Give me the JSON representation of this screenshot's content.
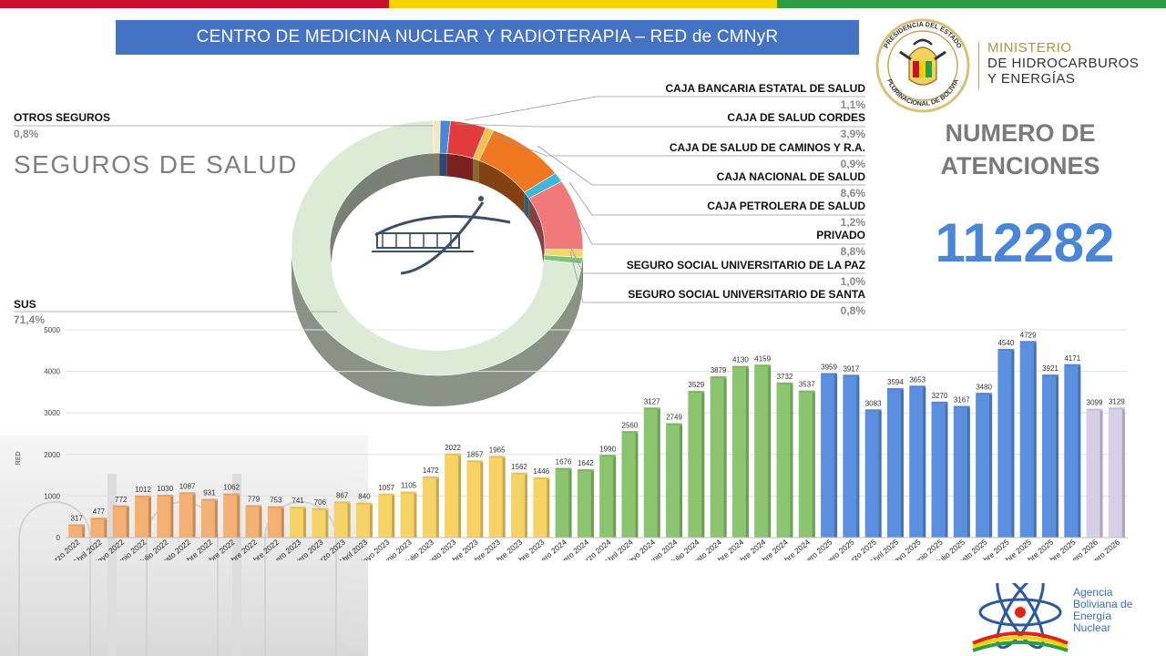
{
  "banner": {
    "title": "CENTRO DE MEDICINA NUCLEAR Y RADIOTERAPIA – RED de CMNyR",
    "bg": "#4472c4"
  },
  "flag_colors": [
    "#c8102e",
    "#f6d400",
    "#2e9e44"
  ],
  "ministry": {
    "line1": "MINISTERIO",
    "line2": "DE HIDROCARBUROS",
    "line3": "Y ENERGÍAS",
    "seal_top": "PRESIDENCIA DEL ESTADO",
    "seal_bottom": "PLURINACIONAL DE BOLIVIA"
  },
  "atenciones": {
    "title_line1": "NUMERO DE",
    "title_line2": "ATENCIONES",
    "value": "112282",
    "value_color": "#4a86d8"
  },
  "seguros": {
    "title": "SEGUROS  DE  SALUD"
  },
  "insurers": [
    {
      "name": "OTROS SEGUROS",
      "pct": "0,8%",
      "value": 0.8,
      "color": "#f4e8b8"
    },
    {
      "name": "CAJA BANCARIA ESTATAL DE SALUD",
      "pct": "1,1%",
      "value": 1.1,
      "color": "#4a86d8"
    },
    {
      "name": "CAJA DE SALUD CORDES",
      "pct": "3,9%",
      "value": 3.9,
      "color": "#e23b3b"
    },
    {
      "name": "CAJA DE SALUD DE CAMINOS Y R.A.",
      "pct": "0,9%",
      "value": 0.9,
      "color": "#f2c14e"
    },
    {
      "name": "CAJA NACIONAL DE SALUD",
      "pct": "8,6%",
      "value": 8.6,
      "color": "#f07820"
    },
    {
      "name": "CAJA PETROLERA DE SALUD",
      "pct": "1,2%",
      "value": 1.2,
      "color": "#41b6d6"
    },
    {
      "name": "PRIVADO",
      "pct": "8,8%",
      "value": 8.8,
      "color": "#f07a7a"
    },
    {
      "name": "SEGURO SOCIAL UNIVERSITARIO DE LA PAZ",
      "pct": "1,0%",
      "value": 1.0,
      "color": "#f5d66a"
    },
    {
      "name": "SEGURO SOCIAL UNIVERSITARIO DE SANTA",
      "pct": "0,8%",
      "value": 0.8,
      "color": "#7cc47a"
    },
    {
      "name": "SUS",
      "pct": "71,4%",
      "value": 71.4,
      "color": "#dcebd6"
    }
  ],
  "chart_data": {
    "type": "bar",
    "ylabel": "RED",
    "ylim": [
      0,
      5000
    ],
    "yticks": [
      "0",
      "1000",
      "2000",
      "3000",
      "4000",
      "5000"
    ],
    "categories": [
      "Marzo 2022",
      "Abril 2022",
      "Mayo 2022",
      "Junio 2022",
      "Julio 2022",
      "Agosto 2022",
      "Septiembre 2022",
      "Octubre 2022",
      "Noviembre 2022",
      "Diciembre 2022",
      "Enero 2023",
      "Febrero 2023",
      "Marzo 2023",
      "Abril 2023",
      "Mayo 2023",
      "Junio 2023",
      "Julio 2023",
      "Agosto 2023",
      "Septiembre 2023",
      "Octubre 2023",
      "Noviembre 2023",
      "Diciembre 2023",
      "Enero 2024",
      "Febrero 2024",
      "Marzo 2024",
      "Abril 2024",
      "Mayo 2024",
      "Junio 2024",
      "Julio 2024",
      "Agosto 2024",
      "Septiembre 2024",
      "Octubre 2024",
      "Noviembre 2024",
      "Diciembre 2024",
      "Enero 2025",
      "Febrero 2025",
      "Marzo 2025",
      "Abril 2025",
      "Mayo 2025",
      "Junio 2025",
      "Julio 2025",
      "Agosto 2025",
      "Septiembre 2025",
      "Octubre 2025",
      "Noviembre 2025",
      "Diciembre 2025",
      "Enero 2026",
      "Febrero 2026"
    ],
    "values": [
      317,
      477,
      772,
      1012,
      1030,
      1087,
      931,
      1062,
      779,
      753,
      741,
      706,
      867,
      840,
      1057,
      1105,
      1472,
      2022,
      1857,
      1965,
      1562,
      1446,
      1676,
      1642,
      1990,
      2560,
      3127,
      2749,
      3529,
      3879,
      4130,
      4159,
      3732,
      3537,
      3959,
      3917,
      3083,
      3594,
      3653,
      3270,
      3167,
      3480,
      4540,
      4729,
      3921,
      4171,
      3099,
      3129
    ],
    "value_labels": [
      "317",
      "477",
      "772",
      "1012",
      "1030",
      "1087",
      "931",
      "1062",
      "779",
      "753",
      "741",
      "706",
      "867",
      "840",
      "1057",
      "1105",
      "1472",
      "2022",
      "1857",
      "1965",
      "1562",
      "1446",
      "1676",
      "1642",
      "1990",
      "2560",
      "3127",
      "2749",
      "3529",
      "3879",
      "4130",
      "4159",
      "3732",
      "3537",
      "3959",
      "3917",
      "3083",
      "3594",
      "3653",
      "3270",
      "3167",
      "3480",
      "4540",
      "4729",
      "3921",
      "4171",
      "3099",
      "3129"
    ],
    "year_colors": {
      "2022": "#f4b072",
      "2023": "#f7d264",
      "2024": "#8cc56f",
      "2025": "#5b8fe0",
      "2026": "#d6cfe8"
    },
    "grid": true,
    "legend": "none"
  },
  "aben": {
    "l1": "Agencia",
    "l2": "Boliviana de",
    "l3": "Energía",
    "l4": "Nuclear"
  }
}
